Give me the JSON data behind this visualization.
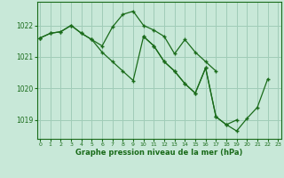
{
  "title": "Graphe pression niveau de la mer (hPa)",
  "bg_color": "#c8e8d8",
  "line_color": "#1a6b1a",
  "grid_color": "#a0ccb8",
  "x_values": [
    0,
    1,
    2,
    3,
    4,
    5,
    6,
    7,
    8,
    9,
    10,
    11,
    12,
    13,
    14,
    15,
    16,
    17,
    18,
    19,
    20,
    21,
    22,
    23
  ],
  "series1": [
    1021.6,
    1021.75,
    1021.8,
    1022.0,
    1021.75,
    1021.55,
    1021.35,
    1021.95,
    1022.35,
    1022.45,
    1022.0,
    1021.85,
    1021.65,
    1021.1,
    1021.55,
    1021.15,
    1020.85,
    1020.55,
    null,
    null,
    null,
    null,
    null,
    null
  ],
  "series2": [
    1021.6,
    1021.75,
    1021.8,
    1022.0,
    1021.75,
    1021.55,
    1021.15,
    1020.85,
    1020.55,
    1020.25,
    1021.65,
    1021.35,
    1020.85,
    1020.55,
    1020.15,
    1019.85,
    1020.65,
    1019.1,
    1018.85,
    1019.0,
    null,
    null,
    null,
    null
  ],
  "series3": [
    1021.6,
    null,
    null,
    null,
    null,
    null,
    null,
    null,
    null,
    null,
    1021.65,
    1021.35,
    1020.85,
    1020.55,
    1020.15,
    1019.85,
    1020.65,
    1019.1,
    1018.85,
    1018.65,
    1019.05,
    1019.4,
    1020.3,
    null
  ],
  "ylim": [
    1018.4,
    1022.75
  ],
  "yticks": [
    1019,
    1020,
    1021,
    1022
  ],
  "xlim": [
    -0.3,
    23.3
  ]
}
